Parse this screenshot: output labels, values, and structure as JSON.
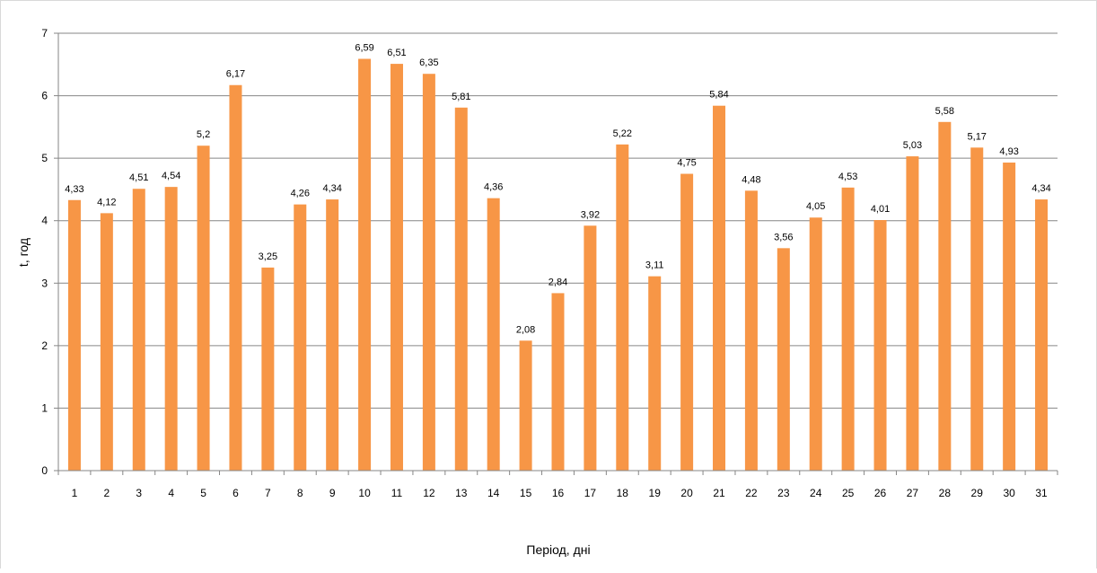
{
  "chart_data": {
    "type": "bar",
    "title": "",
    "xlabel": "Період, дні",
    "ylabel": "t, год",
    "ylim": [
      0,
      7
    ],
    "yticks": [
      "0",
      "1",
      "2",
      "3",
      "4",
      "5",
      "6",
      "7"
    ],
    "grid": true,
    "legend": "none",
    "bar_color": "#F79646",
    "categories": [
      "1",
      "2",
      "3",
      "4",
      "5",
      "6",
      "7",
      "8",
      "9",
      "10",
      "11",
      "12",
      "13",
      "14",
      "15",
      "16",
      "17",
      "18",
      "19",
      "20",
      "21",
      "22",
      "23",
      "24",
      "25",
      "26",
      "27",
      "28",
      "29",
      "30",
      "31"
    ],
    "values": [
      4.33,
      4.12,
      4.51,
      4.54,
      5.2,
      6.17,
      3.25,
      4.26,
      4.34,
      6.59,
      6.51,
      6.35,
      5.81,
      4.36,
      2.08,
      2.84,
      3.92,
      5.22,
      3.11,
      4.75,
      5.84,
      4.48,
      3.56,
      4.05,
      4.53,
      4.01,
      5.03,
      5.58,
      5.17,
      4.93,
      4.34
    ],
    "data_labels": [
      "4,33",
      "4,12",
      "4,51",
      "4,54",
      "5,2",
      "6,17",
      "3,25",
      "4,26",
      "4,34",
      "6,59",
      "6,51",
      "6,35",
      "5,81",
      "4,36",
      "2,08",
      "2,84",
      "3,92",
      "5,22",
      "3,11",
      "4,75",
      "5,84",
      "4,48",
      "3,56",
      "4,05",
      "4,53",
      "4,01",
      "5,03",
      "5,58",
      "5,17",
      "4,93",
      "4,34"
    ]
  }
}
